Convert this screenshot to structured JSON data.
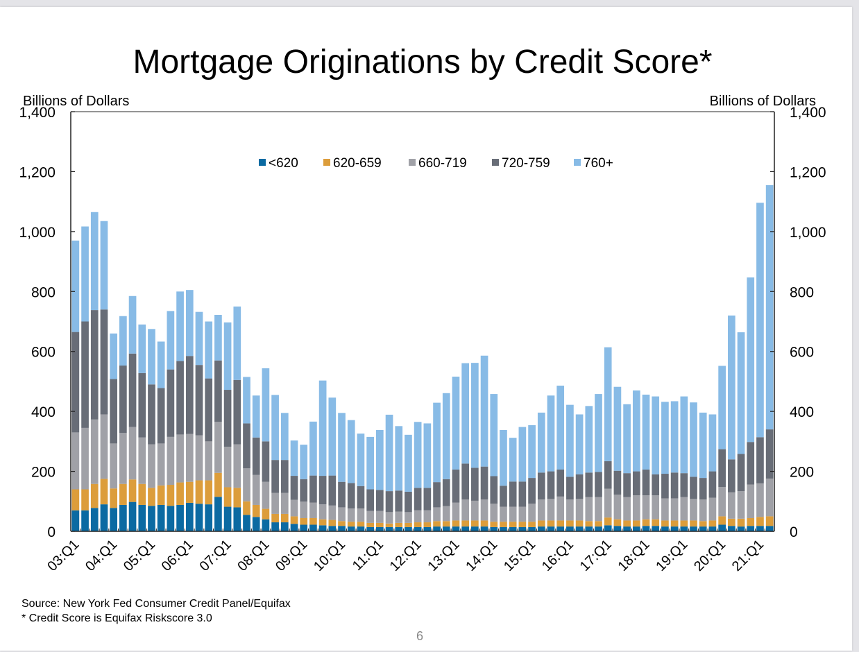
{
  "slide": {
    "title": "Mortgage Originations by Credit Score*",
    "left_axis_label": "Billions of Dollars",
    "right_axis_label": "Billions of Dollars",
    "source_note": "Source: New York Fed Consumer Credit Panel/Equifax",
    "footnote": "* Credit Score is Equifax Riskscore 3.0",
    "page_number": "6"
  },
  "chart_data": {
    "type": "bar",
    "stacked": true,
    "title": "Mortgage Originations by Credit Score*",
    "xlabel": "",
    "ylabel": "Billions of Dollars",
    "ylabel_right": "Billions of Dollars",
    "ylim": [
      0,
      1400
    ],
    "yticks": [
      0,
      200,
      400,
      600,
      800,
      1000,
      1200,
      1400
    ],
    "ytick_labels": [
      "0",
      "200",
      "400",
      "600",
      "800",
      "1,000",
      "1,200",
      "1,400"
    ],
    "xtick_labels": [
      "03:Q1",
      "04:Q1",
      "05:Q1",
      "06:Q1",
      "07:Q1",
      "08:Q1",
      "09:Q1",
      "10:Q1",
      "11:Q1",
      "12:Q1",
      "13:Q1",
      "14:Q1",
      "15:Q1",
      "16:Q1",
      "17:Q1",
      "18:Q1",
      "19:Q1",
      "20:Q1",
      "21:Q1"
    ],
    "grid": false,
    "legend_position": "top-center inside",
    "categories": [
      "03:Q1",
      "03:Q2",
      "03:Q3",
      "03:Q4",
      "04:Q1",
      "04:Q2",
      "04:Q3",
      "04:Q4",
      "05:Q1",
      "05:Q2",
      "05:Q3",
      "05:Q4",
      "06:Q1",
      "06:Q2",
      "06:Q3",
      "06:Q4",
      "07:Q1",
      "07:Q2",
      "07:Q3",
      "07:Q4",
      "08:Q1",
      "08:Q2",
      "08:Q3",
      "08:Q4",
      "09:Q1",
      "09:Q2",
      "09:Q3",
      "09:Q4",
      "10:Q1",
      "10:Q2",
      "10:Q3",
      "10:Q4",
      "11:Q1",
      "11:Q2",
      "11:Q3",
      "11:Q4",
      "12:Q1",
      "12:Q2",
      "12:Q3",
      "12:Q4",
      "13:Q1",
      "13:Q2",
      "13:Q3",
      "13:Q4",
      "14:Q1",
      "14:Q2",
      "14:Q3",
      "14:Q4",
      "15:Q1",
      "15:Q2",
      "15:Q3",
      "15:Q4",
      "16:Q1",
      "16:Q2",
      "16:Q3",
      "16:Q4",
      "17:Q1",
      "17:Q2",
      "17:Q3",
      "17:Q4",
      "18:Q1",
      "18:Q2",
      "18:Q3",
      "18:Q4",
      "19:Q1",
      "19:Q2",
      "19:Q3",
      "19:Q4",
      "20:Q1",
      "20:Q2",
      "20:Q3",
      "20:Q4",
      "21:Q1",
      "21:Q2"
    ],
    "series": [
      {
        "name": "<620",
        "color": "#0b6aa2",
        "values": [
          70,
          70,
          78,
          90,
          78,
          88,
          98,
          88,
          85,
          88,
          85,
          88,
          95,
          92,
          90,
          115,
          82,
          80,
          55,
          48,
          40,
          30,
          30,
          25,
          22,
          22,
          20,
          18,
          18,
          16,
          16,
          14,
          14,
          14,
          14,
          14,
          14,
          14,
          16,
          16,
          16,
          16,
          16,
          16,
          14,
          14,
          14,
          14,
          14,
          16,
          16,
          16,
          16,
          16,
          16,
          16,
          20,
          18,
          16,
          16,
          18,
          18,
          16,
          16,
          16,
          16,
          16,
          16,
          22,
          18,
          16,
          18,
          18,
          18
        ]
      },
      {
        "name": "620-659",
        "color": "#dc9d3b",
        "values": [
          70,
          70,
          80,
          85,
          65,
          70,
          75,
          70,
          60,
          65,
          70,
          75,
          70,
          78,
          80,
          80,
          65,
          65,
          45,
          40,
          35,
          28,
          28,
          25,
          22,
          22,
          20,
          20,
          16,
          16,
          16,
          14,
          14,
          12,
          14,
          14,
          16,
          16,
          18,
          18,
          20,
          20,
          20,
          20,
          18,
          18,
          18,
          18,
          18,
          20,
          20,
          20,
          20,
          20,
          18,
          18,
          26,
          22,
          20,
          20,
          22,
          22,
          20,
          20,
          20,
          20,
          18,
          20,
          28,
          24,
          26,
          26,
          30,
          32
        ]
      },
      {
        "name": "660-719",
        "color": "#a0a1a7",
        "values": [
          190,
          205,
          215,
          215,
          150,
          170,
          175,
          155,
          145,
          140,
          160,
          160,
          160,
          150,
          130,
          170,
          135,
          145,
          110,
          100,
          90,
          70,
          70,
          55,
          55,
          52,
          50,
          48,
          46,
          44,
          44,
          40,
          40,
          38,
          38,
          36,
          40,
          40,
          46,
          50,
          60,
          70,
          66,
          70,
          60,
          50,
          50,
          50,
          60,
          70,
          72,
          80,
          70,
          72,
          80,
          80,
          96,
          82,
          78,
          84,
          80,
          80,
          74,
          74,
          78,
          72,
          72,
          76,
          98,
          88,
          92,
          112,
          112,
          126
        ]
      },
      {
        "name": "720-759",
        "color": "#686d77",
        "values": [
          335,
          355,
          365,
          350,
          215,
          225,
          245,
          215,
          200,
          185,
          225,
          245,
          260,
          235,
          210,
          205,
          190,
          215,
          150,
          125,
          135,
          110,
          110,
          80,
          75,
          90,
          95,
          100,
          85,
          85,
          75,
          72,
          70,
          70,
          70,
          68,
          75,
          75,
          84,
          90,
          110,
          120,
          110,
          110,
          92,
          70,
          84,
          84,
          86,
          90,
          92,
          90,
          76,
          82,
          82,
          84,
          92,
          80,
          80,
          80,
          86,
          70,
          82,
          86,
          80,
          74,
          72,
          88,
          126,
          110,
          124,
          142,
          154,
          164
        ]
      },
      {
        "name": "760+",
        "color": "#88bbe6",
        "values": [
          305,
          317,
          327,
          295,
          152,
          165,
          192,
          162,
          185,
          155,
          195,
          232,
          220,
          177,
          190,
          152,
          225,
          245,
          155,
          140,
          244,
          217,
          157,
          118,
          115,
          180,
          318,
          260,
          230,
          210,
          175,
          175,
          200,
          255,
          215,
          190,
          220,
          215,
          265,
          287,
          310,
          335,
          350,
          370,
          274,
          186,
          146,
          182,
          176,
          200,
          253,
          280,
          240,
          200,
          222,
          260,
          380,
          280,
          230,
          270,
          250,
          260,
          240,
          238,
          256,
          248,
          218,
          190,
          278,
          480,
          406,
          549,
          782,
          815
        ]
      }
    ],
    "totals": [
      970,
      1017,
      1065,
      1035,
      660,
      718,
      785,
      690,
      675,
      633,
      735,
      800,
      805,
      732,
      700,
      722,
      697,
      750,
      515,
      453,
      544,
      455,
      395,
      303,
      289,
      366,
      503,
      446,
      395,
      371,
      326,
      315,
      338,
      389,
      351,
      322,
      365,
      360,
      429,
      461,
      516,
      561,
      562,
      586,
      458,
      338,
      312,
      348,
      354,
      396,
      453,
      486,
      422,
      390,
      418,
      458,
      614,
      482,
      424,
      470,
      456,
      450,
      432,
      434,
      450,
      430,
      396,
      390,
      552,
      720,
      664,
      847,
      1096,
      1155
    ]
  }
}
